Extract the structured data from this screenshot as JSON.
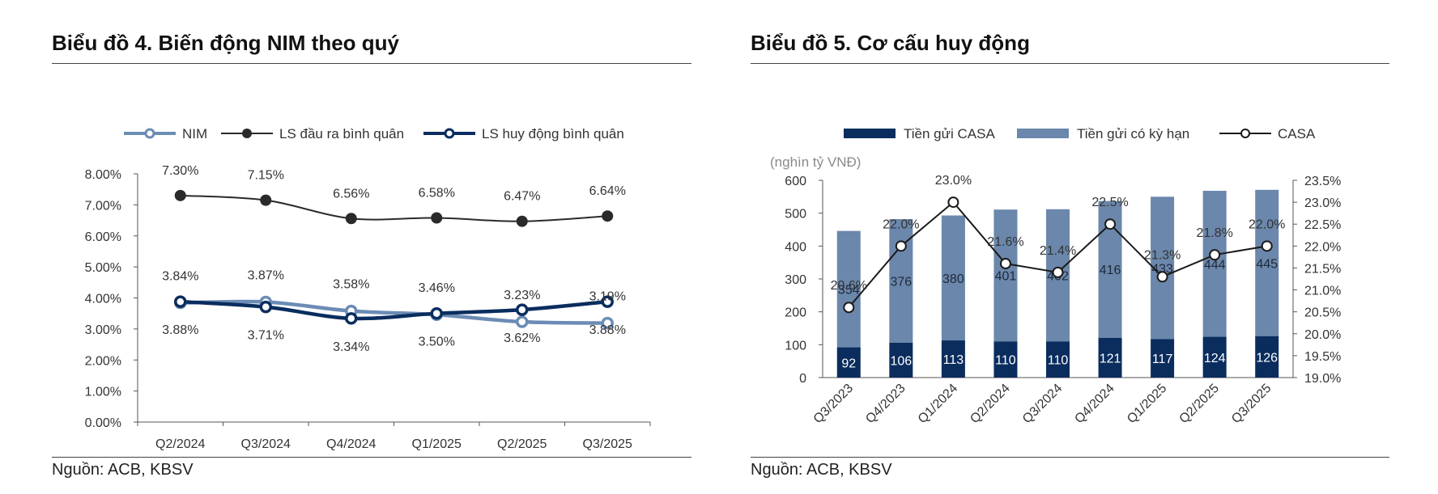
{
  "panels": {
    "left": {
      "title": "Biểu đồ 4. Biến động NIM theo quý",
      "source": "Nguồn: ACB, KBSV"
    },
    "right": {
      "title": "Biểu đồ 5. Cơ cấu huy động",
      "source": "Nguồn: ACB, KBSV"
    }
  },
  "colors": {
    "nim": "#6b8cb5",
    "avg_lending": "#2a2a2a",
    "avg_funding": "#0a2d5e",
    "casa_bar": "#0a2d5e",
    "term_bar": "#6b87ab",
    "axis": "#555555"
  },
  "chart_data": [
    {
      "type": "line",
      "title": "Biểu đồ 4. Biến động NIM theo quý",
      "categories": [
        "Q2/2024",
        "Q3/2024",
        "Q4/2024",
        "Q1/2025",
        "Q2/2025",
        "Q3/2025"
      ],
      "ylim": [
        0,
        8
      ],
      "yticks": [
        "0.00%",
        "1.00%",
        "2.00%",
        "3.00%",
        "4.00%",
        "5.00%",
        "6.00%",
        "7.00%",
        "8.00%"
      ],
      "legend_position": "top",
      "series": [
        {
          "name": "NIM",
          "values": [
            3.84,
            3.87,
            3.58,
            3.46,
            3.23,
            3.19
          ],
          "labels": [
            "3.84%",
            "3.87%",
            "3.58%",
            "3.46%",
            "3.23%",
            "3.19%"
          ]
        },
        {
          "name": "LS đầu ra bình quân",
          "values": [
            7.3,
            7.15,
            6.56,
            6.58,
            6.47,
            6.64
          ],
          "labels": [
            "7.30%",
            "7.15%",
            "6.56%",
            "6.58%",
            "6.47%",
            "6.64%"
          ]
        },
        {
          "name": "LS huy động bình quân",
          "values": [
            3.88,
            3.71,
            3.34,
            3.5,
            3.62,
            3.88
          ],
          "labels": [
            "3.88%",
            "3.71%",
            "3.34%",
            "3.50%",
            "3.62%",
            "3.88%"
          ]
        }
      ]
    },
    {
      "type": "bar",
      "title": "Biểu đồ 5. Cơ cấu huy động",
      "stacked": true,
      "unit_label": "(nghìn tỷ VNĐ)",
      "categories": [
        "Q3/2023",
        "Q4/2023",
        "Q1/2024",
        "Q2/2024",
        "Q3/2024",
        "Q4/2024",
        "Q1/2025",
        "Q2/2025",
        "Q3/2025"
      ],
      "ylim": [
        0,
        600
      ],
      "yticks": [
        "0",
        "100",
        "200",
        "300",
        "400",
        "500",
        "600"
      ],
      "y2lim": [
        19.0,
        23.5
      ],
      "y2ticks": [
        "19.0%",
        "19.5%",
        "20.0%",
        "20.5%",
        "21.0%",
        "21.5%",
        "22.0%",
        "22.5%",
        "23.0%",
        "23.5%"
      ],
      "legend_position": "top",
      "series": [
        {
          "name": "Tiền gửi CASA",
          "values": [
            92,
            106,
            113,
            110,
            110,
            121,
            117,
            124,
            126
          ],
          "labels": [
            "92",
            "106",
            "113",
            "110",
            "110",
            "121",
            "117",
            "124",
            "126"
          ]
        },
        {
          "name": "Tiền gửi có kỳ hạn",
          "values": [
            354,
            376,
            380,
            401,
            402,
            416,
            433,
            444,
            445
          ],
          "labels": [
            "354",
            "376",
            "380",
            "401",
            "402",
            "416",
            "433",
            "444",
            "445"
          ]
        },
        {
          "name": "CASA",
          "axis": "secondary",
          "values": [
            20.6,
            22.0,
            23.0,
            21.6,
            21.4,
            22.5,
            21.3,
            21.8,
            22.0
          ],
          "labels": [
            "20.6%",
            "22.0%",
            "23.0%",
            "21.6%",
            "21.4%",
            "22.5%",
            "21.3%",
            "21.8%",
            "22.0%"
          ]
        }
      ]
    }
  ]
}
